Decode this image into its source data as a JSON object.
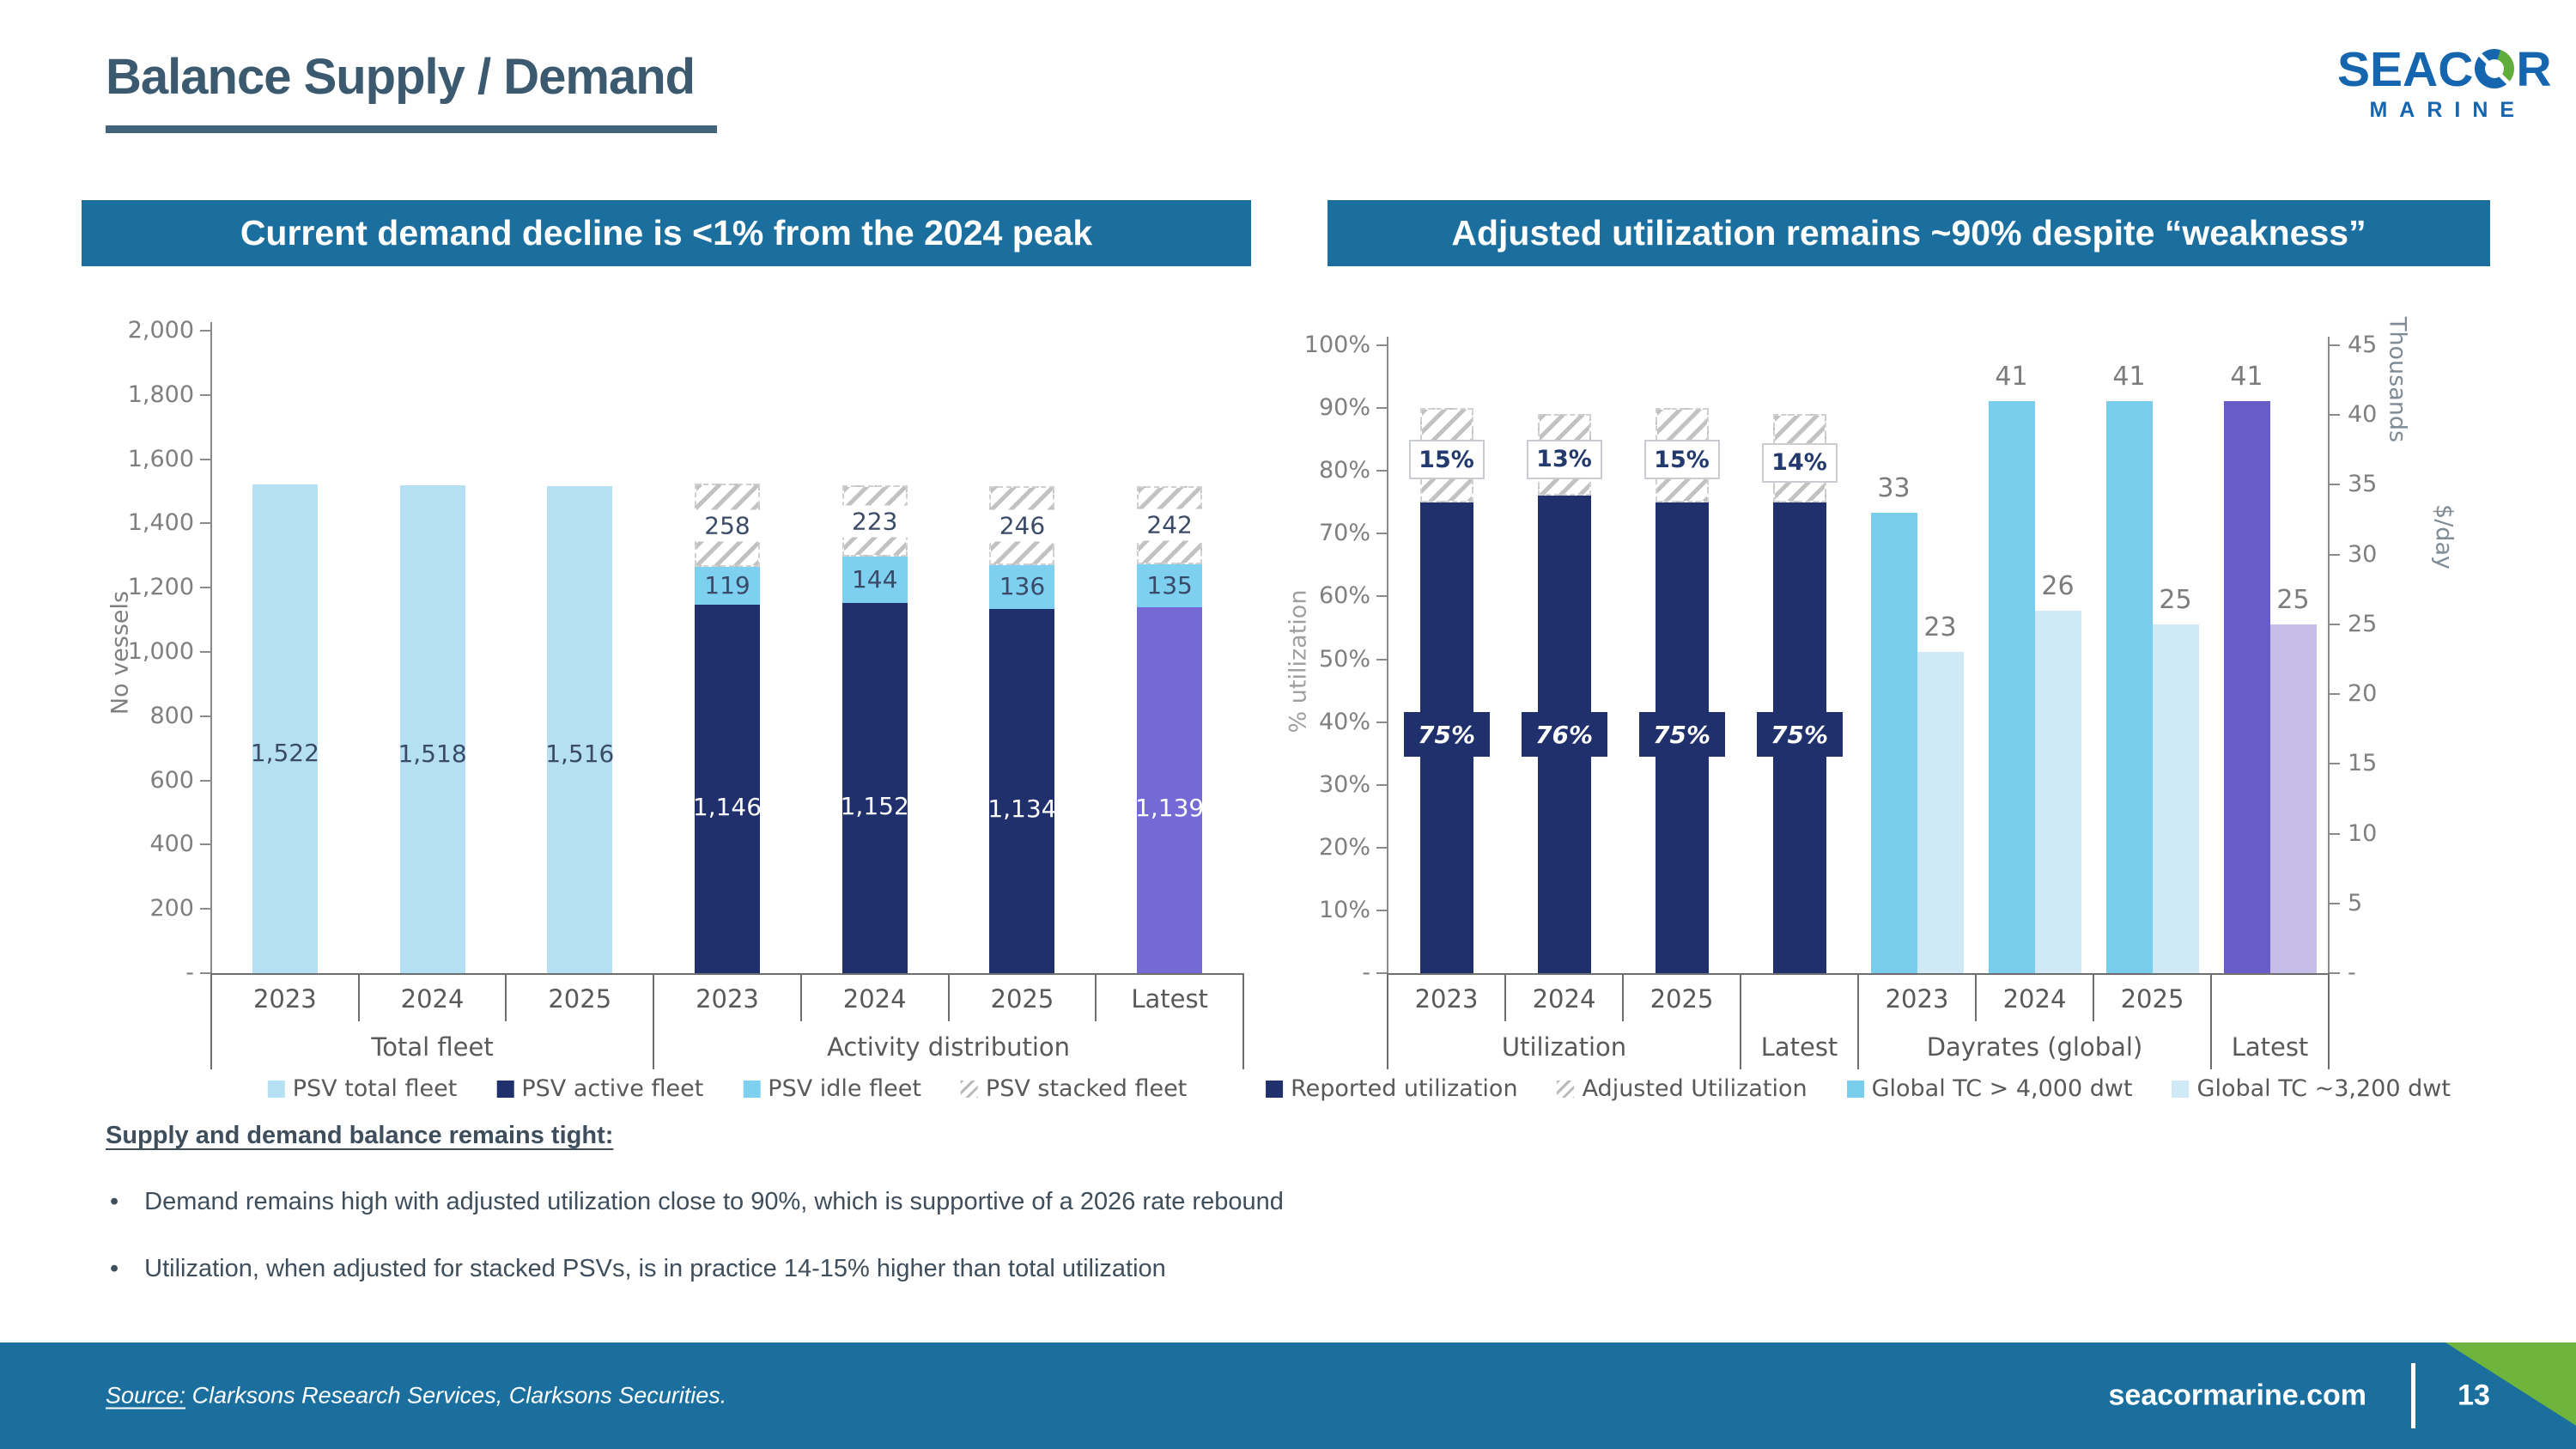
{
  "slide": {
    "title": "Balance Supply / Demand"
  },
  "logo": {
    "brand_prefix": "SEAC",
    "brand_suffix": "R",
    "sub": "MARINE"
  },
  "notes": {
    "heading": "Supply and demand balance remains tight:",
    "bullets": [
      "Demand remains high with adjusted utilization close to 90%, which  is supportive of a 2026 rate rebound",
      "Utilization, when adjusted for stacked PSVs, is in practice 14-15% higher than total utilization"
    ]
  },
  "footer": {
    "source_label": "Source:",
    "source_text": " Clarksons Research Services, Clarksons Securities.",
    "website": "seacormarine.com",
    "page": "13"
  },
  "chart_data": [
    {
      "type": "bar",
      "title": "Current demand decline is <1% from the 2024 peak",
      "ylabel": "No vessels",
      "ylim": [
        0,
        2000
      ],
      "yticks": [
        "2,000",
        "1,800",
        "1,600",
        "1,400",
        "1,200",
        "1,000",
        "800",
        "600",
        "400",
        "200",
        "-"
      ],
      "groups": [
        {
          "label": "Total fleet",
          "columns": [
            {
              "category": "2023",
              "segments": [
                {
                  "series": "PSV total fleet",
                  "value": 1522,
                  "label": "1,522"
                }
              ]
            },
            {
              "category": "2024",
              "segments": [
                {
                  "series": "PSV total fleet",
                  "value": 1518,
                  "label": "1,518"
                }
              ]
            },
            {
              "category": "2025",
              "segments": [
                {
                  "series": "PSV total fleet",
                  "value": 1516,
                  "label": "1,516"
                }
              ]
            }
          ]
        },
        {
          "label": "Activity distribution",
          "columns": [
            {
              "category": "2023",
              "segments": [
                {
                  "series": "PSV active fleet",
                  "value": 1146,
                  "label": "1,146"
                },
                {
                  "series": "PSV idle fleet",
                  "value": 119,
                  "label": "119"
                },
                {
                  "series": "PSV stacked fleet",
                  "value": 258,
                  "label": "258"
                }
              ]
            },
            {
              "category": "2024",
              "segments": [
                {
                  "series": "PSV active fleet",
                  "value": 1152,
                  "label": "1,152"
                },
                {
                  "series": "PSV idle fleet",
                  "value": 144,
                  "label": "144"
                },
                {
                  "series": "PSV stacked fleet",
                  "value": 223,
                  "label": "223"
                }
              ]
            },
            {
              "category": "2025",
              "segments": [
                {
                  "series": "PSV active fleet",
                  "value": 1134,
                  "label": "1,134"
                },
                {
                  "series": "PSV idle fleet",
                  "value": 136,
                  "label": "136"
                },
                {
                  "series": "PSV stacked fleet",
                  "value": 246,
                  "label": "246"
                }
              ]
            },
            {
              "category": "Latest",
              "segments": [
                {
                  "series": "PSV active fleet",
                  "variant": "latest",
                  "value": 1139,
                  "label": "1,139"
                },
                {
                  "series": "PSV idle fleet",
                  "value": 135,
                  "label": "135"
                },
                {
                  "series": "PSV stacked fleet",
                  "value": 242,
                  "label": "242"
                }
              ]
            }
          ]
        }
      ],
      "legend": [
        {
          "key": "pale",
          "label": "PSV total fleet"
        },
        {
          "key": "navy",
          "label": "PSV active fleet"
        },
        {
          "key": "sky",
          "label": "PSV idle fleet"
        },
        {
          "key": "hatch",
          "label": "PSV stacked fleet"
        }
      ]
    },
    {
      "type": "bar",
      "title": "Adjusted utilization remains ~90% despite “weakness”",
      "left_axis": {
        "label": "% utilization",
        "max": 100,
        "ticks": [
          "100%",
          "90%",
          "80%",
          "70%",
          "60%",
          "50%",
          "40%",
          "30%",
          "20%",
          "10%",
          "-"
        ]
      },
      "right_axis": {
        "label_top": "Thousands",
        "label_mid": "$/day",
        "max": 45,
        "ticks": [
          "45",
          "40",
          "35",
          "30",
          "25",
          "20",
          "15",
          "10",
          "5",
          "-"
        ]
      },
      "utilization": {
        "label": "Utilization",
        "columns": [
          {
            "category": "2023",
            "reported": 75,
            "reported_label": "75%",
            "adjusted": 15,
            "adjusted_label": "15%"
          },
          {
            "category": "2024",
            "reported": 76,
            "reported_label": "76%",
            "adjusted": 13,
            "adjusted_label": "13%"
          },
          {
            "category": "2025",
            "reported": 75,
            "reported_label": "75%",
            "adjusted": 15,
            "adjusted_label": "15%"
          },
          {
            "category": "",
            "group_label": "Latest",
            "reported": 75,
            "reported_label": "75%",
            "adjusted": 14,
            "adjusted_label": "14%"
          }
        ]
      },
      "dayrates": {
        "label": "Dayrates (global)",
        "columns": [
          {
            "category": "2023",
            "tc4000": 33,
            "tc3200": 23
          },
          {
            "category": "2024",
            "tc4000": 41,
            "tc3200": 26
          },
          {
            "category": "2025",
            "tc4000": 41,
            "tc3200": 25
          },
          {
            "category": "",
            "group_label": "Latest",
            "variant": "latest",
            "tc4000": 41,
            "tc3200": 25
          }
        ]
      },
      "legend": [
        {
          "key": "navy",
          "label": "Reported utilization"
        },
        {
          "key": "hatch",
          "label": "Adjusted Utilization"
        },
        {
          "key": "skymid",
          "label": "Global TC > 4,000 dwt"
        },
        {
          "key": "palest",
          "label": "Global TC ~3,200 dwt"
        }
      ]
    }
  ]
}
